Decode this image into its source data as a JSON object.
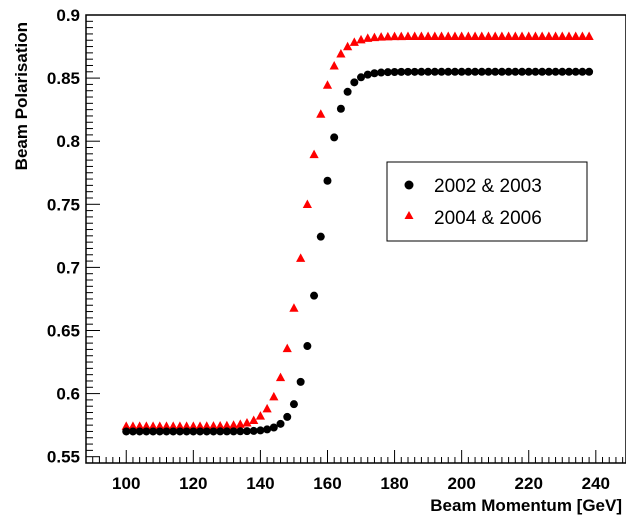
{
  "chart_data": {
    "type": "scatter",
    "title": "",
    "xlabel": "Beam Momentum [GeV]",
    "ylabel": "Beam Polarisation",
    "xlim": [
      88,
      249
    ],
    "ylim": [
      0.545,
      0.9
    ],
    "x_ticks": [
      "100",
      "120",
      "140",
      "160",
      "180",
      "200",
      "220",
      "240"
    ],
    "y_ticks": [
      "0.55",
      "0.6",
      "0.65",
      "0.7",
      "0.75",
      "0.8",
      "0.85",
      "0.9"
    ],
    "grid": false,
    "legend_position": "center-right",
    "series": [
      {
        "name": "2002 & 2003",
        "marker": "circle",
        "color": "#000000",
        "x_start": 100,
        "x_end": 238,
        "x_step": 2,
        "y_low": 0.57,
        "y_high": 0.855,
        "midpoint": 157.5,
        "width": 3.0
      },
      {
        "name": "2004 & 2006",
        "marker": "triangle",
        "color": "#ff0000",
        "x_start": 100,
        "x_end": 238,
        "x_step": 2,
        "y_low": 0.574,
        "y_high": 0.883,
        "midpoint": 153.0,
        "width": 3.6
      }
    ]
  }
}
